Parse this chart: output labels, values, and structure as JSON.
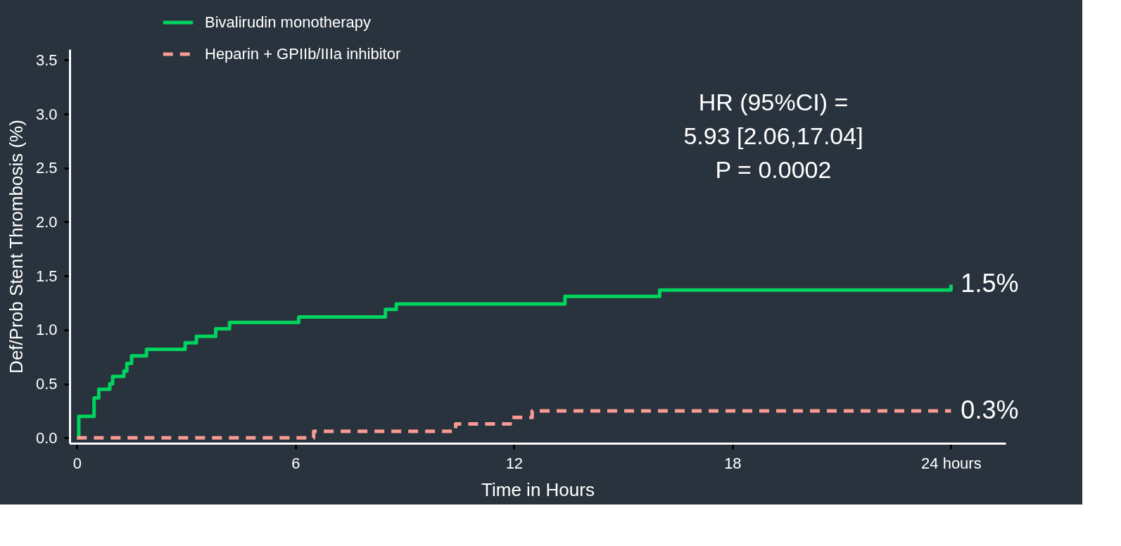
{
  "chart_data": {
    "type": "step",
    "xlabel": "Time in Hours",
    "ylabel": "Def/Prob Stent Thrombosis (%)",
    "series": [
      {
        "name": "Bivalirudin monotherapy",
        "color": "#00d45e",
        "line_style": "solid",
        "x": [
          0,
          0.05,
          0.47,
          0.6,
          0.9,
          0.98,
          1.29,
          1.37,
          1.5,
          1.91,
          2.97,
          3.28,
          3.81,
          4.19,
          6.09,
          8.47,
          8.77,
          13.4,
          16.0,
          24
        ],
        "values": [
          0,
          0.2,
          0.37,
          0.45,
          0.5,
          0.57,
          0.62,
          0.69,
          0.76,
          0.82,
          0.88,
          0.94,
          1.01,
          1.07,
          1.12,
          1.19,
          1.24,
          1.31,
          1.37,
          1.42
        ]
      },
      {
        "name": "Heparin + GPIIb/IIIa  inhibitor",
        "color": "#f99a94",
        "line_style": "dashed",
        "x": [
          0,
          6.5,
          10.4,
          11.9,
          12.5,
          24
        ],
        "values": [
          0,
          0.06,
          0.13,
          0.19,
          0.25,
          0.25
        ]
      }
    ],
    "xlim": [
      -0.2,
      25.5
    ],
    "ylim": [
      -0.05,
      3.6
    ],
    "xticks": [
      0,
      6,
      12,
      18,
      {
        "value": 24,
        "label": "24 hours"
      }
    ],
    "yticks": [
      {
        "value": 0,
        "label": "0.0"
      },
      0.5,
      {
        "value": 1,
        "label": "1.0"
      },
      1.5,
      {
        "value": 2,
        "label": "2.0"
      },
      2.5,
      {
        "value": 3,
        "label": "3.0"
      },
      3.5
    ],
    "annotations": [
      "HR (95%CI) =\n5.93 [2.06,17.04]\nP = 0.0002",
      {
        "text": "1.5%",
        "x": 24,
        "y": 1.42
      },
      {
        "text": "0.3%",
        "x": 24,
        "y": 0.25
      }
    ],
    "grid": false,
    "legend": "top left",
    "marker": "none"
  }
}
